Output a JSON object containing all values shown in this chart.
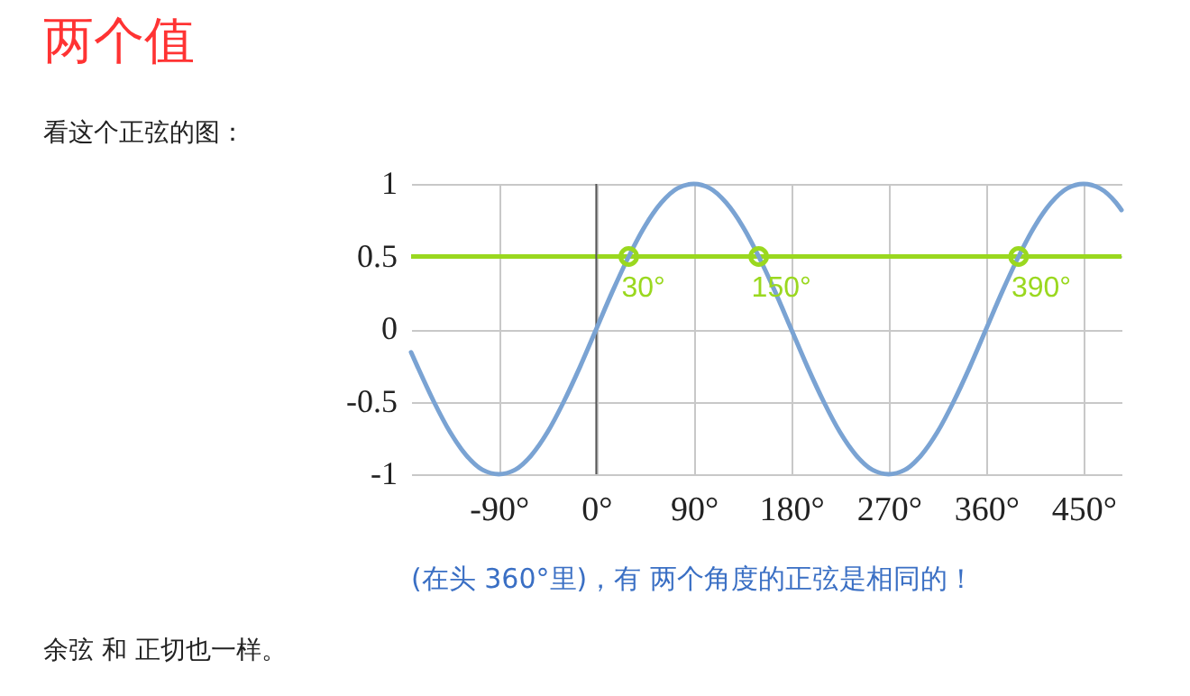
{
  "chart_data": {
    "type": "line",
    "title": "两个值",
    "subtitle": "看这个正弦的图：",
    "annotations": [
      "(在头 360°里)，有 两个角度的正弦是相同的！",
      "余弦 和 正切也一样。",
      {
        "text": "30°",
        "x": 30,
        "y": 0.5
      },
      {
        "text": "150°",
        "x": 150,
        "y": 0.5
      },
      {
        "text": "390°",
        "x": 390,
        "y": 0.5
      }
    ],
    "xlim": [
      -171,
      485
    ],
    "ylim": [
      -1,
      1
    ],
    "xticks": [
      {
        "value": -90,
        "label": "-90°"
      },
      {
        "value": 0,
        "label": "0°"
      },
      {
        "value": 90,
        "label": "90°"
      },
      {
        "value": 180,
        "label": "180°"
      },
      {
        "value": 270,
        "label": "270°"
      },
      {
        "value": 360,
        "label": "360°"
      },
      {
        "value": 450,
        "label": "450°"
      }
    ],
    "yticks": [
      -1,
      -0.5,
      0,
      0.5,
      1
    ],
    "grid": true,
    "line_style": "solid",
    "ref_lines": [
      {
        "axis": "y",
        "value": 0.5,
        "color": "#9ad81f"
      },
      {
        "axis": "x",
        "value": 0,
        "color": "#555555"
      }
    ],
    "series": [
      {
        "color": "#7aa3d3",
        "x": [
          -171,
          -165,
          -150,
          -135,
          -120,
          -105,
          -90,
          -75,
          -60,
          -45,
          -30,
          -15,
          0,
          15,
          30,
          45,
          60,
          75,
          90,
          105,
          120,
          135,
          150,
          165,
          180,
          195,
          210,
          225,
          240,
          255,
          270,
          285,
          300,
          315,
          330,
          345,
          360,
          375,
          390,
          405,
          420,
          435,
          450,
          465,
          480,
          485
        ],
        "values": [
          -0.16,
          -0.26,
          -0.5,
          -0.71,
          -0.87,
          -0.97,
          -1,
          -0.97,
          -0.87,
          -0.71,
          -0.5,
          -0.26,
          0,
          0.26,
          0.5,
          0.71,
          0.87,
          0.97,
          1,
          0.97,
          0.87,
          0.71,
          0.5,
          0.26,
          0,
          -0.26,
          -0.5,
          -0.71,
          -0.87,
          -0.97,
          -1,
          -0.97,
          -0.87,
          -0.71,
          -0.5,
          -0.26,
          0,
          0.26,
          0.5,
          0.71,
          0.87,
          0.97,
          1,
          0.97,
          0.87,
          0.82
        ]
      },
      {
        "type": "scatter",
        "marker": "circle",
        "color": "#9ad81f",
        "x": [
          30,
          150,
          390
        ],
        "values": [
          0.5,
          0.5,
          0.5
        ]
      }
    ]
  }
}
